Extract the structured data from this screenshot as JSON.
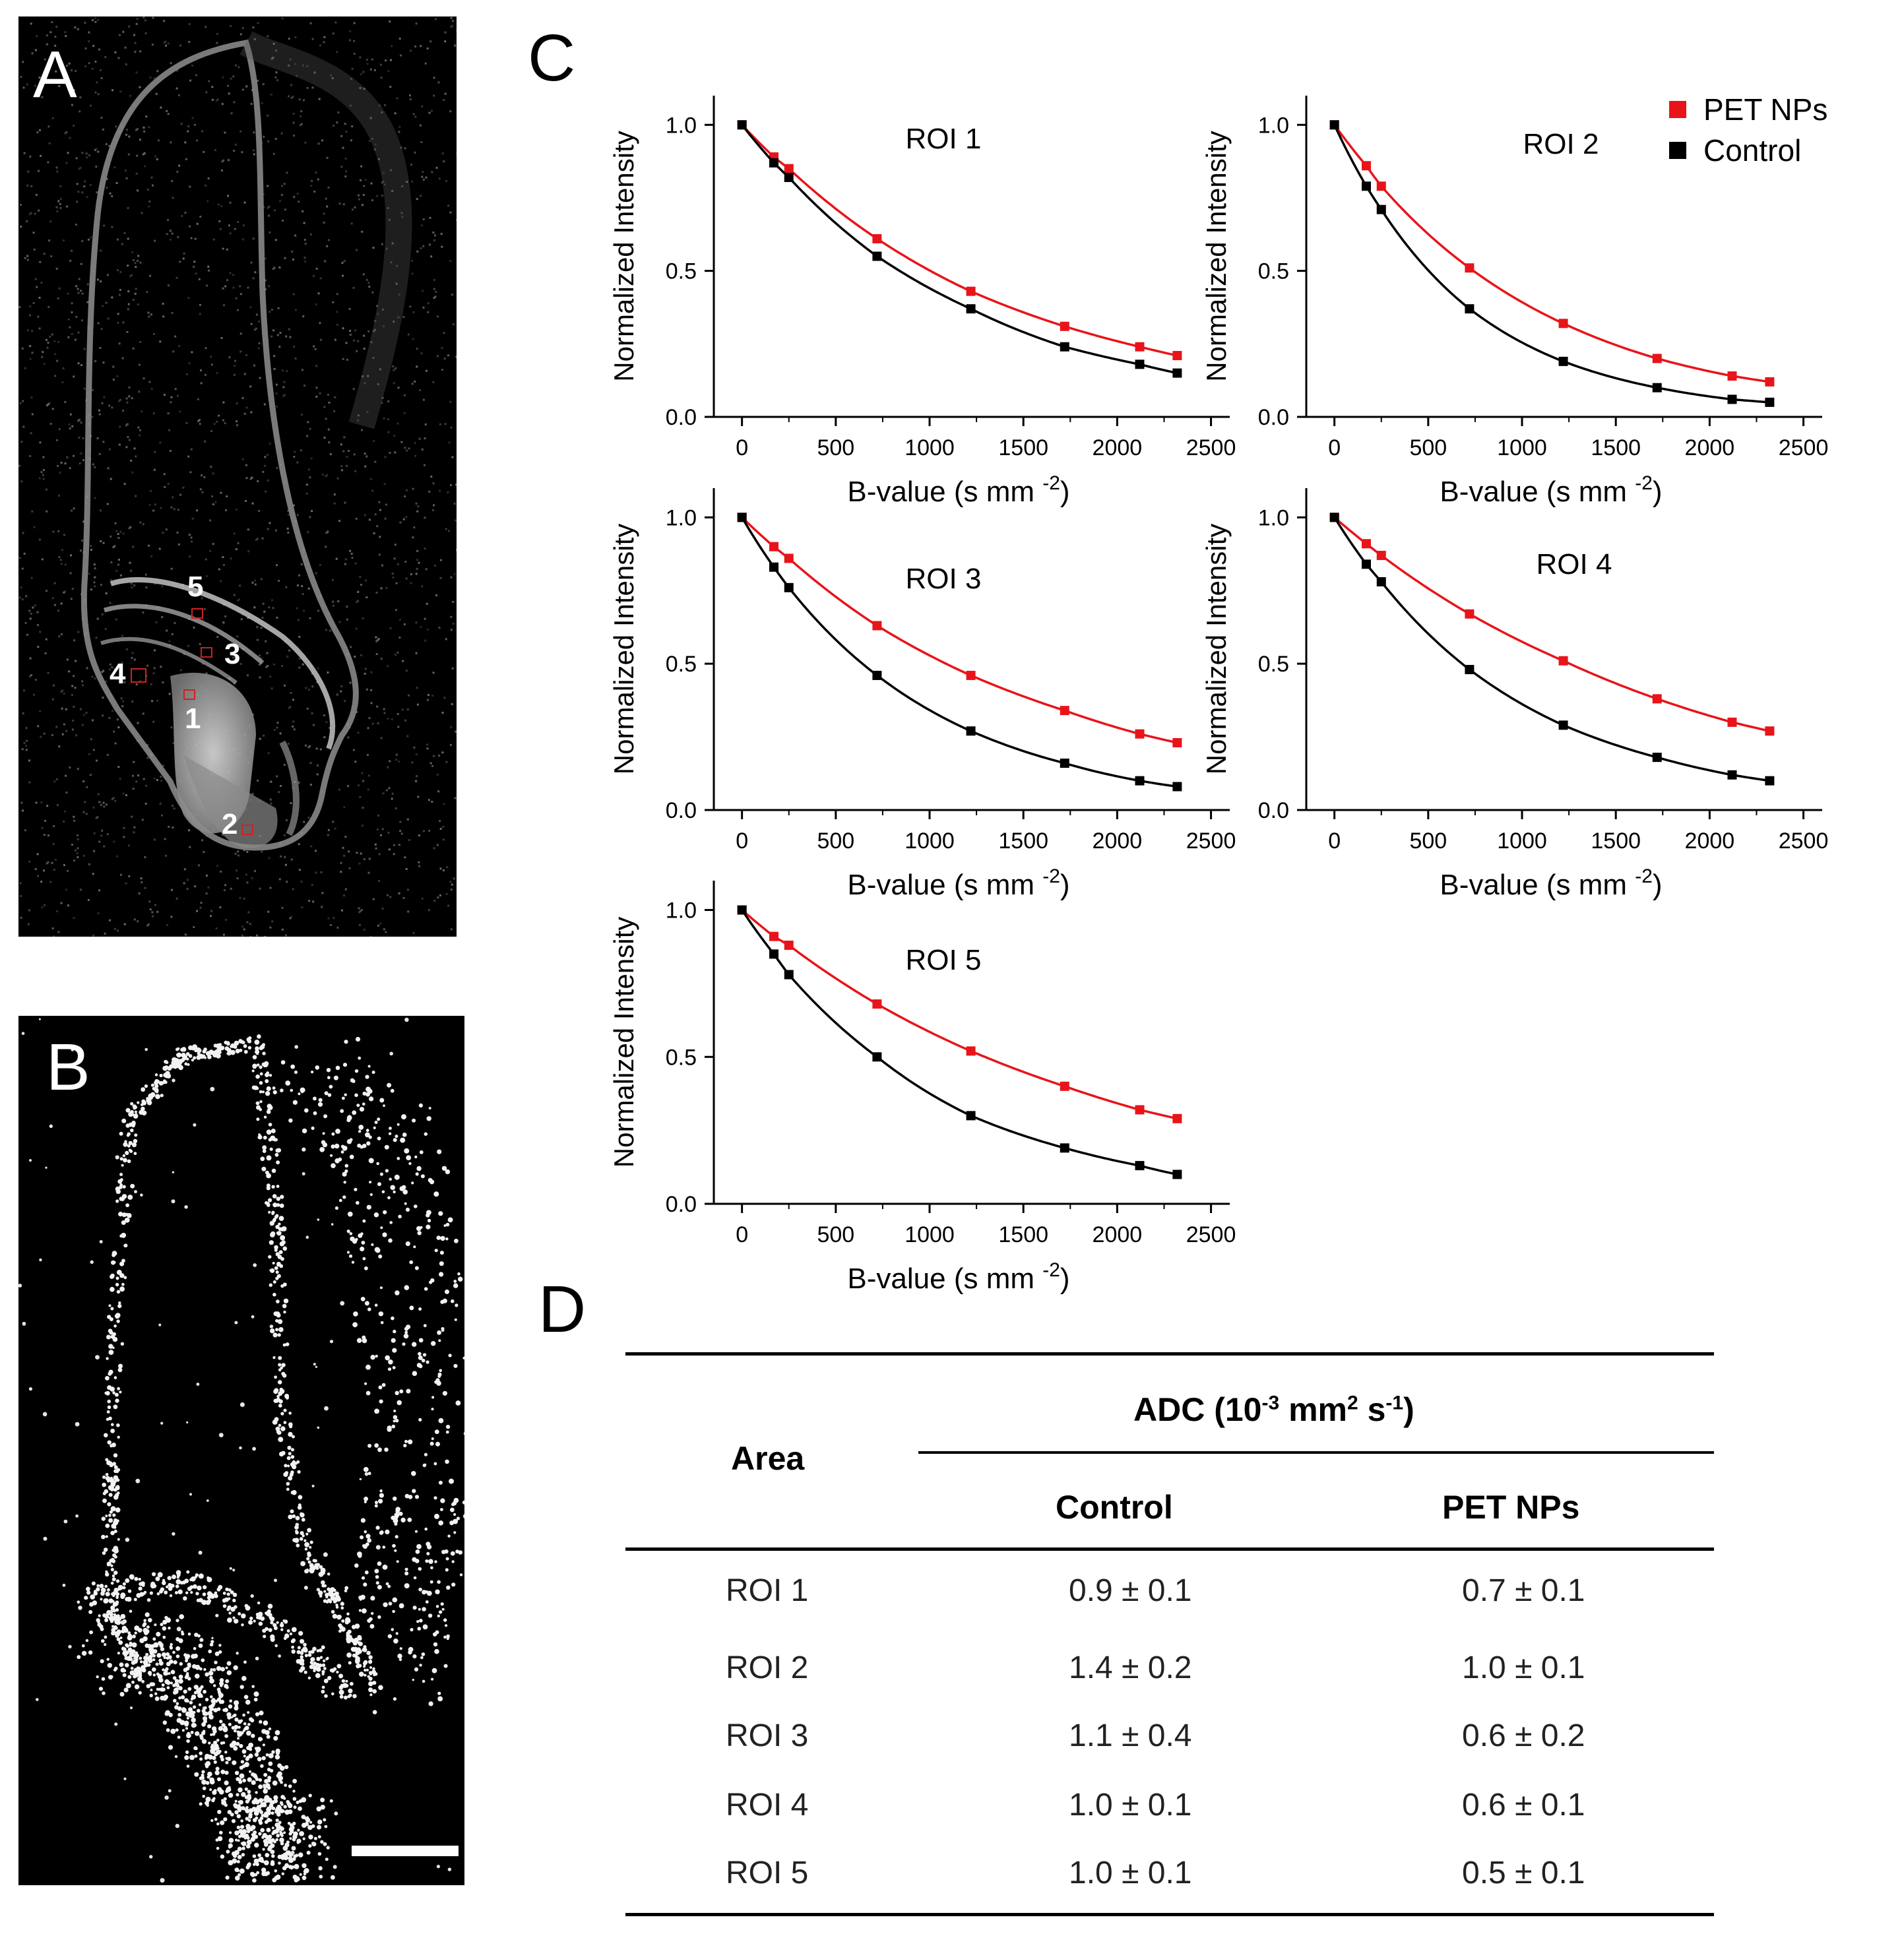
{
  "panels": {
    "a": "A",
    "b": "B",
    "c": "C",
    "d": "D"
  },
  "image_a": {
    "roi_labels": [
      "1",
      "2",
      "3",
      "4",
      "5"
    ]
  },
  "chart_data": [
    {
      "type": "line",
      "title": "ROI 1",
      "xlabel": "B-value (s mm -2)",
      "ylabel": "Normalized Intensity",
      "xlim": [
        -150,
        2600
      ],
      "ylim": [
        0,
        1.1
      ],
      "xticks": [
        0,
        500,
        1000,
        1500,
        2000,
        2500
      ],
      "yticks": [
        0.0,
        0.5,
        1.0
      ],
      "x": [
        0,
        170,
        250,
        720,
        1220,
        1720,
        2120,
        2320
      ],
      "series": [
        {
          "name": "PET NPs",
          "color": "#e8141a",
          "values": [
            1.0,
            0.89,
            0.85,
            0.61,
            0.43,
            0.31,
            0.24,
            0.21
          ]
        },
        {
          "name": "Control",
          "color": "#000000",
          "values": [
            1.0,
            0.87,
            0.82,
            0.55,
            0.37,
            0.24,
            0.18,
            0.15
          ]
        }
      ]
    },
    {
      "type": "line",
      "title": "ROI 2",
      "xlabel": "B-value (s mm -2)",
      "ylabel": "Normalized Intensity",
      "xlim": [
        -150,
        2600
      ],
      "ylim": [
        0,
        1.1
      ],
      "xticks": [
        0,
        500,
        1000,
        1500,
        2000,
        2500
      ],
      "yticks": [
        0.0,
        0.5,
        1.0
      ],
      "x": [
        0,
        170,
        250,
        720,
        1220,
        1720,
        2120,
        2320
      ],
      "series": [
        {
          "name": "PET NPs",
          "color": "#e8141a",
          "values": [
            1.0,
            0.86,
            0.79,
            0.51,
            0.32,
            0.2,
            0.14,
            0.12
          ]
        },
        {
          "name": "Control",
          "color": "#000000",
          "values": [
            1.0,
            0.79,
            0.71,
            0.37,
            0.19,
            0.1,
            0.06,
            0.05
          ]
        }
      ]
    },
    {
      "type": "line",
      "title": "ROI 3",
      "xlabel": "B-value (s mm -2)",
      "ylabel": "Normalized Intensity",
      "xlim": [
        -150,
        2600
      ],
      "ylim": [
        0,
        1.1
      ],
      "xticks": [
        0,
        500,
        1000,
        1500,
        2000,
        2500
      ],
      "yticks": [
        0.0,
        0.5,
        1.0
      ],
      "x": [
        0,
        170,
        250,
        720,
        1220,
        1720,
        2120,
        2320
      ],
      "series": [
        {
          "name": "PET NPs",
          "color": "#e8141a",
          "values": [
            1.0,
            0.9,
            0.86,
            0.63,
            0.46,
            0.34,
            0.26,
            0.23
          ]
        },
        {
          "name": "Control",
          "color": "#000000",
          "values": [
            1.0,
            0.83,
            0.76,
            0.46,
            0.27,
            0.16,
            0.1,
            0.08
          ]
        }
      ]
    },
    {
      "type": "line",
      "title": "ROI 4",
      "xlabel": "B-value (s mm -2)",
      "ylabel": "Normalized Intensity",
      "xlim": [
        -150,
        2600
      ],
      "ylim": [
        0,
        1.1
      ],
      "xticks": [
        0,
        500,
        1000,
        1500,
        2000,
        2500
      ],
      "yticks": [
        0.0,
        0.5,
        1.0
      ],
      "x": [
        0,
        170,
        250,
        720,
        1220,
        1720,
        2120,
        2320
      ],
      "series": [
        {
          "name": "PET NPs",
          "color": "#e8141a",
          "values": [
            1.0,
            0.91,
            0.87,
            0.67,
            0.51,
            0.38,
            0.3,
            0.27
          ]
        },
        {
          "name": "Control",
          "color": "#000000",
          "values": [
            1.0,
            0.84,
            0.78,
            0.48,
            0.29,
            0.18,
            0.12,
            0.1
          ]
        }
      ]
    },
    {
      "type": "line",
      "title": "ROI 5",
      "xlabel": "B-value (s mm -2)",
      "ylabel": "Normalized Intensity",
      "xlim": [
        -150,
        2600
      ],
      "ylim": [
        0,
        1.1
      ],
      "xticks": [
        0,
        500,
        1000,
        1500,
        2000,
        2500
      ],
      "yticks": [
        0.0,
        0.5,
        1.0
      ],
      "x": [
        0,
        170,
        250,
        720,
        1220,
        1720,
        2120,
        2320
      ],
      "series": [
        {
          "name": "PET NPs",
          "color": "#e8141a",
          "values": [
            1.0,
            0.91,
            0.88,
            0.68,
            0.52,
            0.4,
            0.32,
            0.29
          ]
        },
        {
          "name": "Control",
          "color": "#000000",
          "values": [
            1.0,
            0.85,
            0.78,
            0.5,
            0.3,
            0.19,
            0.13,
            0.1
          ]
        }
      ]
    }
  ],
  "legend": {
    "items": [
      {
        "label": "PET NPs",
        "color": "#e8141a"
      },
      {
        "label": "Control",
        "color": "#000000"
      }
    ]
  },
  "table": {
    "area_header": "Area",
    "adc_header_prefix": "ADC (10",
    "adc_header_exp1": "-3",
    "adc_header_mid": " mm",
    "adc_header_exp2": "2",
    "adc_header_mid2": " s",
    "adc_header_exp3": "-1",
    "adc_header_suffix": ")",
    "col_control": "Control",
    "col_pet": "PET NPs",
    "rows": [
      {
        "area": "ROI 1",
        "control": "0.9 ± 0.1",
        "pet": "0.7 ± 0.1"
      },
      {
        "area": "ROI 2",
        "control": "1.4 ± 0.2",
        "pet": "1.0 ± 0.1"
      },
      {
        "area": "ROI 3",
        "control": "1.1 ± 0.4",
        "pet": "0.6 ± 0.2"
      },
      {
        "area": "ROI 4",
        "control": "1.0 ± 0.1",
        "pet": "0.6 ± 0.1"
      },
      {
        "area": "ROI 5",
        "control": "1.0 ± 0.1",
        "pet": "0.5 ± 0.1"
      }
    ]
  }
}
